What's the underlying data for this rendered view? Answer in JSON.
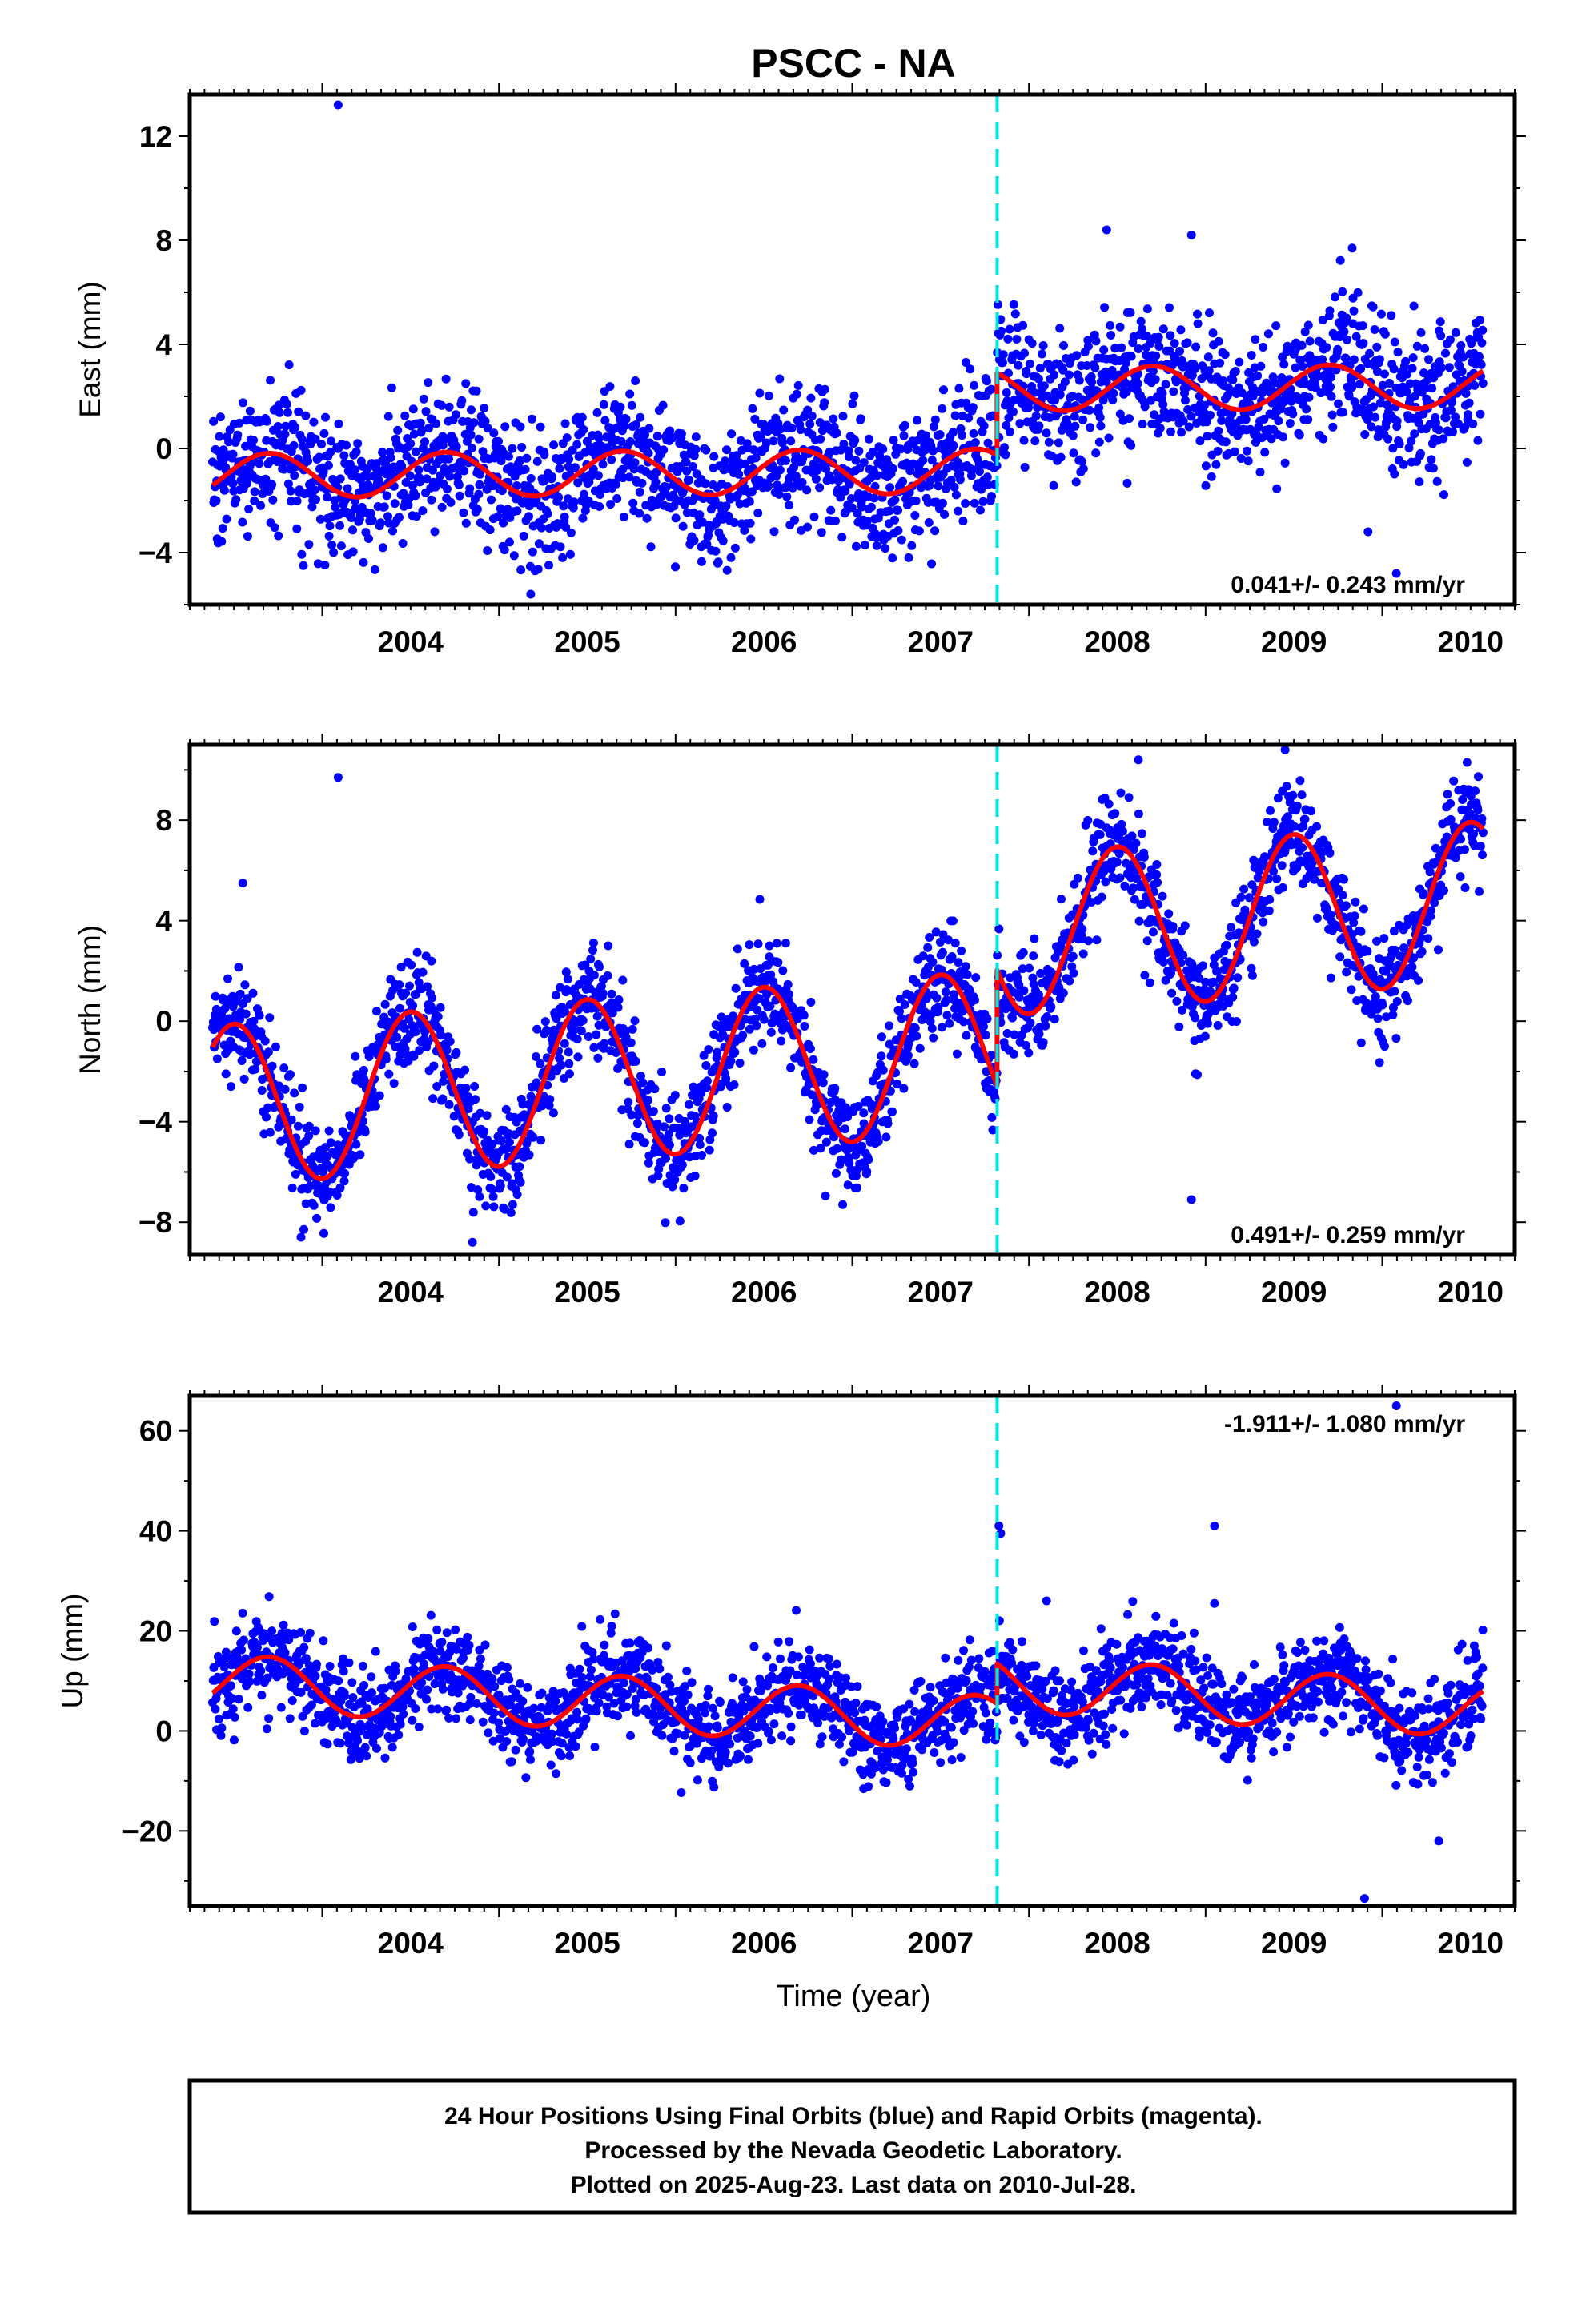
{
  "title": "PSCC - NA",
  "x_axis_label": "Time (year)",
  "caption": [
    "24 Hour Positions Using Final Orbits (blue) and Rapid Orbits (magenta).",
    "Processed by the Nevada Geodetic Laboratory.",
    "Plotted on 2025-Aug-23. Last data on 2010-Jul-28."
  ],
  "colors": {
    "points": "#0000ff",
    "model": "#ff0000",
    "event_line": "#00e5e5",
    "frame": "#000000"
  },
  "chart_data": [
    {
      "type": "scatter",
      "ylabel": "East (mm)",
      "rate_label": "0.041+/- 0.243 mm/yr",
      "xlim": [
        2003.25,
        2010.75
      ],
      "ylim": [
        -6.0,
        13.6
      ],
      "x_ticks": [
        "2004",
        "2005",
        "2006",
        "2007",
        "2008",
        "2009",
        "2010"
      ],
      "y_ticks": [
        "−4",
        "0",
        "4",
        "8",
        "12"
      ],
      "y_tick_values": [
        -4,
        0,
        4,
        8,
        12
      ],
      "data_start": 2003.38,
      "data_end": 2010.57,
      "event_line_x": 2007.82,
      "series": [
        {
          "label": "daily positions",
          "points_approx": 2300,
          "scatter_sigma": 1.3,
          "outliers": [
            [
              2004.09,
              13.2
            ],
            [
              2008.44,
              8.4
            ],
            [
              2008.92,
              8.2
            ],
            [
              2009.83,
              7.7
            ],
            [
              2005.18,
              -5.6
            ],
            [
              2010.08,
              -4.8
            ],
            [
              2009.92,
              -3.2
            ]
          ]
        },
        {
          "label": "model",
          "before_event": {
            "offset": -0.9,
            "trend_per_yr": 0.041,
            "annual_amp": 0.85,
            "annual_peak_year_fraction": 0.7
          },
          "after_event": {
            "offset": 2.25,
            "trend_per_yr": 0.041,
            "annual_amp": 0.85,
            "annual_peak_year_fraction": 0.7
          }
        }
      ]
    },
    {
      "type": "scatter",
      "ylabel": "North (mm)",
      "rate_label": "0.491+/- 0.259 mm/yr",
      "xlim": [
        2003.25,
        2010.75
      ],
      "ylim": [
        -9.3,
        11.0
      ],
      "x_ticks": [
        "2004",
        "2005",
        "2006",
        "2007",
        "2008",
        "2009",
        "2010"
      ],
      "y_ticks": [
        "−8",
        "−4",
        "0",
        "4",
        "8"
      ],
      "y_tick_values": [
        -8,
        -4,
        0,
        4,
        8
      ],
      "data_start": 2003.38,
      "data_end": 2010.57,
      "event_line_x": 2007.82,
      "series": [
        {
          "label": "daily positions",
          "points_approx": 2300,
          "scatter_sigma": 1.05,
          "outliers": [
            [
              2004.09,
              9.7
            ],
            [
              2008.62,
              10.4
            ],
            [
              2009.45,
              10.8
            ],
            [
              2010.48,
              10.3
            ],
            [
              2008.92,
              -7.1
            ],
            [
              2004.85,
              -8.8
            ],
            [
              2003.88,
              -8.6
            ],
            [
              2003.55,
              5.5
            ]
          ]
        },
        {
          "label": "model",
          "before_event": {
            "offset": -1.6,
            "trend_per_yr": 0.491,
            "annual_amp": 3.2,
            "annual_peak_year_fraction": 0.5
          },
          "after_event": {
            "offset": 3.0,
            "trend_per_yr": 0.491,
            "annual_amp": 3.2,
            "annual_peak_year_fraction": 0.5
          }
        }
      ]
    },
    {
      "type": "scatter",
      "ylabel": "Up (mm)",
      "rate_label": "-1.911+/- 1.080 mm/yr",
      "xlim": [
        2003.25,
        2010.75
      ],
      "ylim": [
        -35.0,
        67.0
      ],
      "x_ticks": [
        "2004",
        "2005",
        "2006",
        "2007",
        "2008",
        "2009",
        "2010"
      ],
      "y_ticks": [
        "−20",
        "0",
        "20",
        "40",
        "60"
      ],
      "y_tick_values": [
        -20,
        0,
        20,
        40,
        60
      ],
      "data_start": 2003.38,
      "data_end": 2010.57,
      "event_line_x": 2007.82,
      "series": [
        {
          "label": "daily positions",
          "points_approx": 2300,
          "scatter_sigma": 4.6,
          "outliers": [
            [
              2010.08,
              65.0
            ],
            [
              2007.83,
              41.0
            ],
            [
              2007.84,
              39.5
            ],
            [
              2009.05,
              41.0
            ],
            [
              2009.05,
              25.5
            ],
            [
              2008.1,
              26.0
            ],
            [
              2009.9,
              -33.5
            ],
            [
              2010.32,
              -22.0
            ]
          ]
        },
        {
          "label": "model",
          "before_event": {
            "offset": 3.0,
            "trend_per_yr": -1.911,
            "annual_amp": 5.5,
            "annual_peak_year_fraction": 0.7
          },
          "after_event": {
            "offset": 11.0,
            "trend_per_yr": -1.911,
            "annual_amp": 5.5,
            "annual_peak_year_fraction": 0.7
          }
        }
      ]
    }
  ]
}
